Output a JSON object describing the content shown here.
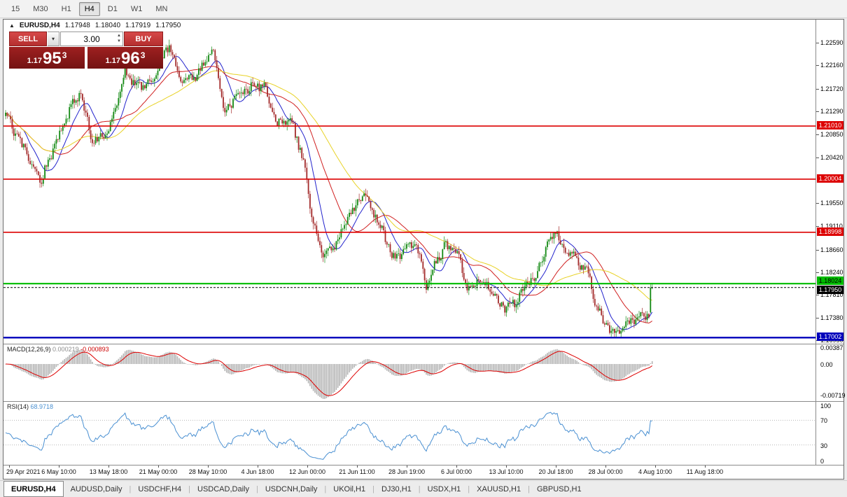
{
  "toolbar": {
    "timeframes": [
      "15",
      "M30",
      "H1",
      "H4",
      "D1",
      "W1",
      "MN"
    ],
    "active_timeframe": "H4"
  },
  "chart": {
    "title": "EURUSD,H4",
    "ohlc": {
      "open": "1.17948",
      "high": "1.18040",
      "low": "1.17919",
      "close": "1.17950"
    }
  },
  "trade_panel": {
    "sell_label": "SELL",
    "buy_label": "BUY",
    "volume": "3.00",
    "dropdown_icon": "▾",
    "sell_price": {
      "prefix": "1.17",
      "big": "95",
      "pip": "3"
    },
    "buy_price": {
      "prefix": "1.17",
      "big": "96",
      "pip": "3"
    }
  },
  "tabs": {
    "items": [
      "EURUSD,H4",
      "AUDUSD,Daily",
      "USDCHF,H4",
      "USDCAD,Daily",
      "USDCNH,Daily",
      "UKOil,H1",
      "DJ30,H1",
      "USDX,H1",
      "XAUUSD,H1",
      "GBPUSD,H1"
    ],
    "active": "EURUSD,H4"
  },
  "chart_data": {
    "type": "candlestick",
    "symbol": "EURUSD",
    "timeframe": "H4",
    "current": {
      "open": 1.17948,
      "high": 1.1804,
      "low": 1.17919,
      "close": 1.1795
    },
    "recent_spike_bar": {
      "open": 1.1748,
      "high": 1.1801,
      "low": 1.1746,
      "close": 1.17948
    },
    "y_range": [
      1.169,
      1.23
    ],
    "y_ticks": [
      "1.22590",
      "1.22160",
      "1.21720",
      "1.21290",
      "1.20850",
      "1.20420",
      "1.19550",
      "1.19110",
      "1.18660",
      "1.18240",
      "1.17810",
      "1.17380",
      "1.16950"
    ],
    "x_labels": [
      "29 Apr 2021",
      "6 May 10:00",
      "13 May 18:00",
      "21 May 00:00",
      "28 May 10:00",
      "4 Jun 18:00",
      "12 Jun 00:00",
      "21 Jun 11:00",
      "28 Jun 19:00",
      "6 Jul 00:00",
      "13 Jul 10:00",
      "20 Jul 18:00",
      "28 Jul 00:00",
      "4 Aug 10:00",
      "11 Aug 18:00"
    ],
    "levels": [
      {
        "price": 1.2101,
        "label": "1.21010",
        "color": "#dd0000",
        "text": "#ffffff",
        "width": 1.6,
        "tag_dy": -7
      },
      {
        "price": 1.20004,
        "label": "1.20004",
        "color": "#dd0000",
        "text": "#ffffff",
        "width": 1.6,
        "tag_dy": -7
      },
      {
        "price": 1.18998,
        "label": "1.18998",
        "color": "#dd0000",
        "text": "#ffffff",
        "width": 1.6,
        "tag_dy": -7
      },
      {
        "price": 1.18024,
        "label": "1.18024",
        "color": "#00bb00",
        "text": "#000000",
        "width": 2.2,
        "tag_dy": -10
      },
      {
        "price": 1.17002,
        "label": "1.17002",
        "color": "#0000bb",
        "text": "#ffffff",
        "width": 2.4,
        "tag_dy": -7
      }
    ],
    "bid_line": {
      "price": 1.1795,
      "label": "1.17950",
      "color": "#000000",
      "tag_dy": -3
    },
    "bars": 396,
    "candle_up_color": "#128912",
    "candle_down_color": "#a32a2a",
    "moving_averages": [
      {
        "period": 12,
        "color": "#2222cc"
      },
      {
        "period": 30,
        "color": "#d02020"
      },
      {
        "period": 55,
        "color": "#e8d227"
      }
    ],
    "price_path": [
      [
        0.0,
        1.212
      ],
      [
        0.03,
        1.2055
      ],
      [
        0.055,
        1.2
      ],
      [
        0.075,
        1.206
      ],
      [
        0.1,
        1.2135
      ],
      [
        0.115,
        1.2165
      ],
      [
        0.135,
        1.207
      ],
      [
        0.16,
        1.2095
      ],
      [
        0.185,
        1.2205
      ],
      [
        0.205,
        1.2175
      ],
      [
        0.225,
        1.2185
      ],
      [
        0.253,
        1.2255
      ],
      [
        0.27,
        1.2195
      ],
      [
        0.29,
        1.219
      ],
      [
        0.32,
        1.2245
      ],
      [
        0.34,
        1.2125
      ],
      [
        0.36,
        1.2165
      ],
      [
        0.38,
        1.2175
      ],
      [
        0.4,
        1.218
      ],
      [
        0.42,
        1.2105
      ],
      [
        0.44,
        1.212
      ],
      [
        0.46,
        1.204
      ],
      [
        0.475,
        1.192
      ],
      [
        0.49,
        1.1855
      ],
      [
        0.505,
        1.1865
      ],
      [
        0.53,
        1.193
      ],
      [
        0.555,
        1.197
      ],
      [
        0.575,
        1.1925
      ],
      [
        0.6,
        1.185
      ],
      [
        0.615,
        1.1865
      ],
      [
        0.635,
        1.188
      ],
      [
        0.65,
        1.18
      ],
      [
        0.665,
        1.184
      ],
      [
        0.68,
        1.1875
      ],
      [
        0.7,
        1.186
      ],
      [
        0.715,
        1.179
      ],
      [
        0.73,
        1.181
      ],
      [
        0.745,
        1.18
      ],
      [
        0.76,
        1.177
      ],
      [
        0.775,
        1.1755
      ],
      [
        0.79,
        1.177
      ],
      [
        0.805,
        1.18
      ],
      [
        0.82,
        1.1815
      ],
      [
        0.835,
        1.187
      ],
      [
        0.85,
        1.1905
      ],
      [
        0.862,
        1.187
      ],
      [
        0.875,
        1.1865
      ],
      [
        0.887,
        1.184
      ],
      [
        0.9,
        1.183
      ],
      [
        0.912,
        1.176
      ],
      [
        0.925,
        1.173
      ],
      [
        0.94,
        1.1708
      ],
      [
        0.955,
        1.1722
      ],
      [
        0.975,
        1.1738
      ],
      [
        1.0,
        1.1748
      ]
    ],
    "macd": {
      "label": "MACD(12,26,9)",
      "value_main": "0.000219",
      "value_signal": "-0.000893",
      "params": [
        12,
        26,
        9
      ],
      "range_max": 0.003873,
      "range_min": -0.007193,
      "ticks": [
        "0.00387",
        "0.00",
        "-0.00719"
      ],
      "histogram_color": "#b4b4b4",
      "signal_color": "#dd0000"
    },
    "rsi": {
      "label": "RSI(14)",
      "value": "68.9718",
      "period": 14,
      "levels": [
        70,
        30
      ],
      "ticks": [
        "100",
        "70",
        "30",
        "0"
      ],
      "color": "#4a90d2",
      "range": [
        0,
        100
      ]
    }
  }
}
